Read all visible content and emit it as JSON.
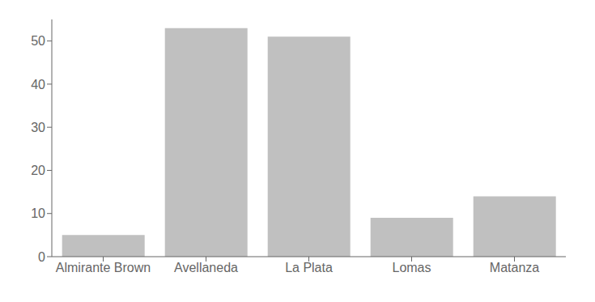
{
  "chart_data": {
    "type": "bar",
    "categories": [
      "Almirante Brown",
      "Avellaneda",
      "La Plata",
      "Lomas",
      "Matanza"
    ],
    "values": [
      5,
      53,
      51,
      9,
      14
    ],
    "color": "#c0c0c0",
    "ylim": [
      0,
      55
    ],
    "yticks": [
      0,
      10,
      20,
      30,
      40,
      50
    ],
    "grid": false
  }
}
